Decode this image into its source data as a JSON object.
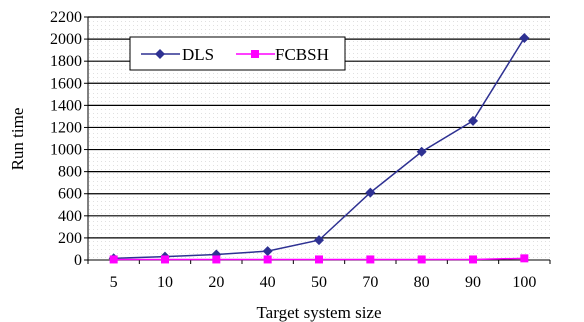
{
  "chart_data": {
    "type": "line",
    "categories": [
      "5",
      "10",
      "20",
      "40",
      "50",
      "70",
      "80",
      "90",
      "100"
    ],
    "series": [
      {
        "name": "DLS",
        "values": [
          15,
          30,
          50,
          80,
          180,
          610,
          980,
          1260,
          2010
        ],
        "color": "#2e3192",
        "marker": "diamond"
      },
      {
        "name": "FCBSH",
        "values": [
          5,
          5,
          5,
          5,
          5,
          5,
          5,
          5,
          15
        ],
        "color": "#ff00ff",
        "marker": "square"
      }
    ],
    "yticks": [
      0,
      200,
      400,
      600,
      800,
      1000,
      1200,
      1400,
      1600,
      1800,
      2000,
      2200
    ],
    "ylim": [
      0,
      2200
    ],
    "xlabel": "Target system size",
    "ylabel": "Run time",
    "grid": true,
    "legend_position": "top-left"
  }
}
